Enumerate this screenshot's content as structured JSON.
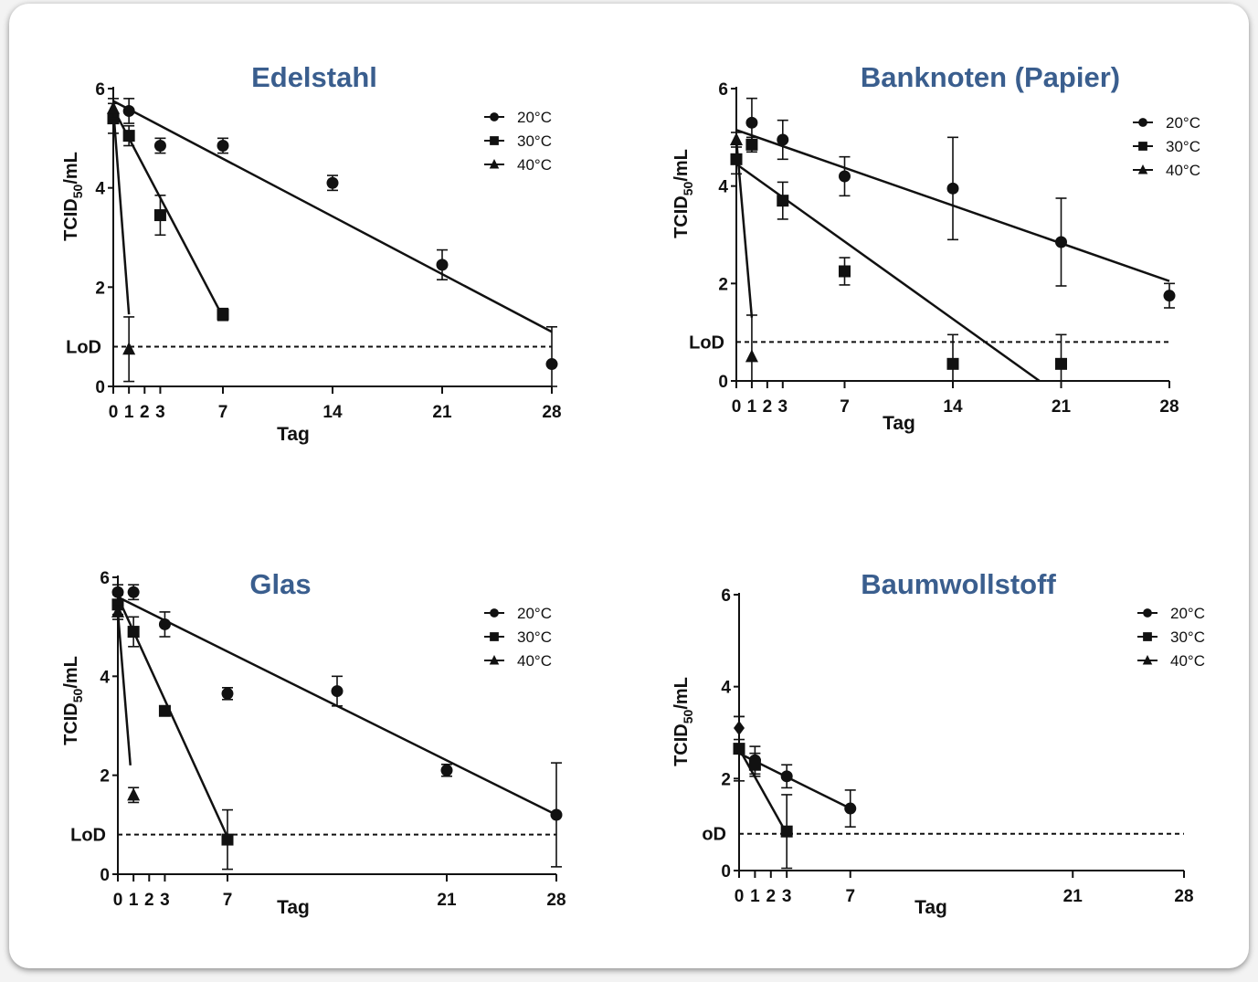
{
  "ylabel": "TCID50/mL",
  "chart_data": [
    {
      "type": "scatter",
      "title": "Edelstahl",
      "xlabel": "Tag",
      "ylabel": "TCID50/mL",
      "x_ticks": [
        "0",
        "1",
        "2",
        "3",
        "7",
        "14",
        "21",
        "28"
      ],
      "y_ticks": [
        "0",
        "2",
        "4",
        "6"
      ],
      "ylim": [
        0,
        6
      ],
      "xlim": [
        0,
        28
      ],
      "lod_label": "LoD",
      "lod": 0.8,
      "legend_position": "top-right",
      "series": [
        {
          "name": "20°C",
          "marker": "circle",
          "points": [
            {
              "x": 1,
              "y": 5.55,
              "err": 0.25
            },
            {
              "x": 3,
              "y": 4.85,
              "err": 0.15
            },
            {
              "x": 7,
              "y": 4.85,
              "err": 0.15
            },
            {
              "x": 14,
              "y": 4.1,
              "err": 0.15
            },
            {
              "x": 21,
              "y": 2.45,
              "err": 0.3
            },
            {
              "x": 28,
              "y": 0.45,
              "err": 0.75
            }
          ],
          "fit": [
            [
              0,
              5.75
            ],
            [
              28,
              1.1
            ]
          ]
        },
        {
          "name": "30°C",
          "marker": "square",
          "points": [
            {
              "x": 0,
              "y": 5.4,
              "err": 0.3
            },
            {
              "x": 1,
              "y": 5.05,
              "err": 0.2
            },
            {
              "x": 3,
              "y": 3.45,
              "err": 0.4
            },
            {
              "x": 7,
              "y": 1.45,
              "err": 0.12
            }
          ],
          "fit": [
            [
              0,
              5.6
            ],
            [
              7,
              1.4
            ]
          ]
        },
        {
          "name": "40°C",
          "marker": "triangle",
          "points": [
            {
              "x": 0,
              "y": 5.6,
              "err": 0.2
            },
            {
              "x": 1,
              "y": 0.75,
              "err": 0.65
            }
          ],
          "fit": [
            [
              0,
              5.6
            ],
            [
              1,
              1.45
            ]
          ]
        }
      ]
    },
    {
      "type": "scatter",
      "title": "Banknoten (Papier)",
      "xlabel": "Tag",
      "ylabel": "TCID50/mL",
      "x_ticks": [
        "0",
        "1",
        "2",
        "3",
        "7",
        "14",
        "21",
        "28"
      ],
      "y_ticks": [
        "0",
        "2",
        "4",
        "6"
      ],
      "ylim": [
        0,
        6
      ],
      "xlim": [
        0,
        28
      ],
      "lod_label": "LoD",
      "lod": 0.8,
      "legend_position": "top-right",
      "series": [
        {
          "name": "20°C",
          "marker": "circle",
          "points": [
            {
              "x": 1,
              "y": 5.3,
              "err": 0.5
            },
            {
              "x": 3,
              "y": 4.95,
              "err": 0.4
            },
            {
              "x": 7,
              "y": 4.2,
              "err": 0.4
            },
            {
              "x": 14,
              "y": 3.95,
              "err": 1.05
            },
            {
              "x": 21,
              "y": 2.85,
              "err": 0.9
            },
            {
              "x": 28,
              "y": 1.75,
              "err": 0.25
            }
          ],
          "fit": [
            [
              0,
              5.15
            ],
            [
              28,
              2.05
            ]
          ]
        },
        {
          "name": "30°C",
          "marker": "square",
          "points": [
            {
              "x": 0,
              "y": 4.55,
              "err": 0.3
            },
            {
              "x": 1,
              "y": 4.85,
              "err": 0.15
            },
            {
              "x": 3,
              "y": 3.7,
              "err": 0.38
            },
            {
              "x": 7,
              "y": 2.25,
              "err": 0.28
            },
            {
              "x": 14,
              "y": 0.35,
              "err": 0.6
            },
            {
              "x": 21,
              "y": 0.35,
              "err": 0.6
            }
          ],
          "fit": [
            [
              0,
              4.45
            ],
            [
              19.6,
              0
            ]
          ]
        },
        {
          "name": "40°C",
          "marker": "triangle",
          "points": [
            {
              "x": 0,
              "y": 4.95,
              "err": 0.15
            },
            {
              "x": 1,
              "y": 0.5,
              "err": 0.85
            }
          ],
          "fit": [
            [
              0,
              4.95
            ],
            [
              1,
              1.3
            ]
          ]
        }
      ]
    },
    {
      "type": "scatter",
      "title": "Glas",
      "xlabel": "Tag",
      "ylabel": "TCID50/mL",
      "x_ticks": [
        "0",
        "1",
        "2",
        "3",
        "7",
        "21",
        "28"
      ],
      "y_ticks": [
        "0",
        "2",
        "4",
        "6"
      ],
      "ylim": [
        0,
        6
      ],
      "xlim": [
        0,
        28
      ],
      "lod_label": "LoD",
      "lod": 0.8,
      "legend_position": "top-right",
      "series": [
        {
          "name": "20°C",
          "marker": "circle",
          "points": [
            {
              "x": 0,
              "y": 5.7,
              "err": 0.15
            },
            {
              "x": 1,
              "y": 5.7,
              "err": 0.15
            },
            {
              "x": 3,
              "y": 5.05,
              "err": 0.25
            },
            {
              "x": 7,
              "y": 3.65,
              "err": 0.12
            },
            {
              "x": 14,
              "y": 3.7,
              "err": 0.3
            },
            {
              "x": 21,
              "y": 2.1,
              "err": 0.12
            },
            {
              "x": 28,
              "y": 1.2,
              "err": 1.05
            }
          ],
          "fit": [
            [
              0,
              5.6
            ],
            [
              28,
              1.2
            ]
          ]
        },
        {
          "name": "30°C",
          "marker": "square",
          "points": [
            {
              "x": 0,
              "y": 5.45,
              "err": 0.2
            },
            {
              "x": 1,
              "y": 4.9,
              "err": 0.3
            },
            {
              "x": 3,
              "y": 3.3,
              "err": 0.1
            },
            {
              "x": 7,
              "y": 0.7,
              "err": 0.6
            }
          ],
          "fit": [
            [
              0,
              5.6
            ],
            [
              7,
              0.75
            ]
          ]
        },
        {
          "name": "40°C",
          "marker": "triangle",
          "points": [
            {
              "x": 0,
              "y": 5.3,
              "err": 0.15
            },
            {
              "x": 1,
              "y": 1.6,
              "err": 0.15
            }
          ],
          "fit": [
            [
              0,
              5.3
            ],
            [
              0.8,
              2.2
            ]
          ]
        }
      ]
    },
    {
      "type": "scatter",
      "title": "Baumwollstoff",
      "xlabel": "Tag",
      "ylabel": "TCID50/mL",
      "x_ticks": [
        "0",
        "1",
        "2",
        "3",
        "7",
        "21",
        "28"
      ],
      "y_ticks": [
        "0",
        "2",
        "4",
        "6"
      ],
      "ylim": [
        0,
        6
      ],
      "xlim": [
        0,
        28
      ],
      "lod_label": "oD",
      "lod": 0.8,
      "legend_position": "top-right",
      "series": [
        {
          "name": "20°C",
          "marker": "circle",
          "points": [
            {
              "x": 1,
              "y": 2.4,
              "err": 0.3
            },
            {
              "x": 3,
              "y": 2.05,
              "err": 0.25
            },
            {
              "x": 7,
              "y": 1.35,
              "err": 0.4
            }
          ],
          "fit": [
            [
              0,
              2.55
            ],
            [
              7,
              1.35
            ]
          ]
        },
        {
          "name": "30°C",
          "marker": "square",
          "points": [
            {
              "x": 0,
              "y": 2.65,
              "err": 0.7
            },
            {
              "x": 1,
              "y": 2.3,
              "err": 0.25
            },
            {
              "x": 3,
              "y": 0.85,
              "err": 0.8
            }
          ],
          "fit": [
            [
              0,
              2.65
            ],
            [
              3,
              0.8
            ]
          ]
        },
        {
          "name": "40°C",
          "marker": "diamond",
          "points": [
            {
              "x": 0,
              "y": 3.1,
              "err": 0.25
            }
          ],
          "fit": []
        }
      ]
    }
  ]
}
